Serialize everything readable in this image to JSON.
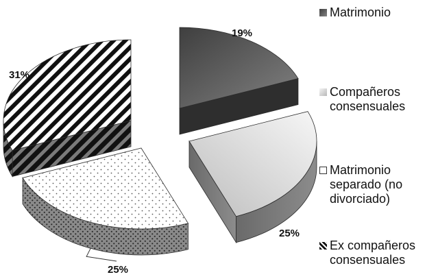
{
  "chart_data": {
    "type": "pie",
    "style": "3d-exploded",
    "slices": [
      {
        "label": "Matrimonio",
        "value": 19,
        "display": "19%",
        "fill": "solid-dark-gray",
        "color": "#555555"
      },
      {
        "label": "Compañeros\nconsensuales",
        "value": 25,
        "display": "25%",
        "fill": "light-gray-gradient",
        "color": "#d8d8d8"
      },
      {
        "label": "Matrimonio\nseparado (no\ndivorciado)",
        "value": 25,
        "display": "25%",
        "fill": "white-dotted",
        "color": "#ffffff"
      },
      {
        "label": "Ex compañeros\nconsensuales",
        "value": 31,
        "display": "31%",
        "fill": "black-diagonal-stripes",
        "color": "#000000"
      }
    ],
    "legend_placement": "right"
  }
}
